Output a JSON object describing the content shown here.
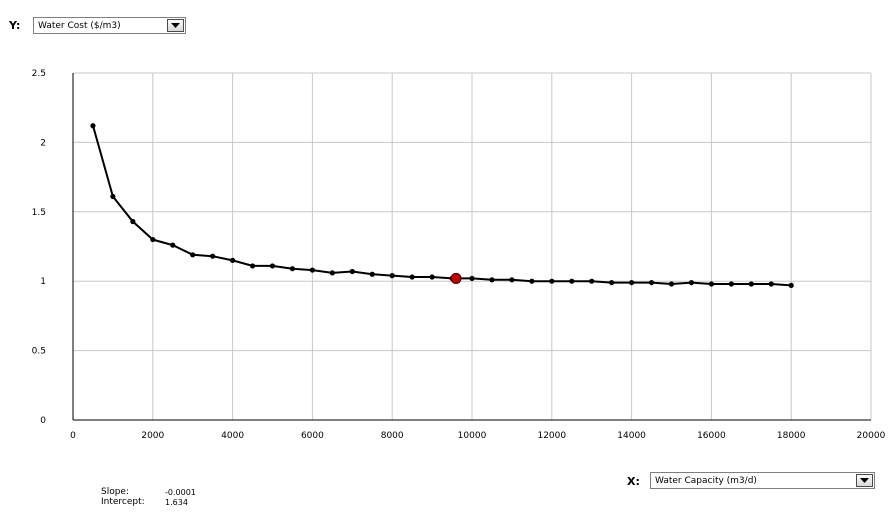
{
  "y_selector": {
    "key_label": "Y:",
    "selected": "Water Cost ($/m3)",
    "icon": "chevron-down-icon"
  },
  "x_selector": {
    "key_label": "X:",
    "selected": "Water Capacity (m3/d)",
    "icon": "chevron-down-icon"
  },
  "stats": {
    "slope_label": "Slope:",
    "slope_value": "-0.0001",
    "intercept_label": "Intercept:",
    "intercept_value": "1.634"
  },
  "colors": {
    "line": "#000000",
    "point": "#000000",
    "highlight_point": "#c00000",
    "grid": "#c8c8c8"
  },
  "chart_data": {
    "type": "line",
    "title": "",
    "xlabel": "",
    "ylabel": "",
    "xlim": [
      0,
      20000
    ],
    "ylim": [
      0,
      2.5
    ],
    "x_ticks": [
      "0",
      "2000",
      "4000",
      "6000",
      "8000",
      "10000",
      "12000",
      "14000",
      "16000",
      "18000",
      "20000"
    ],
    "y_ticks": [
      "0",
      "0.5",
      "1",
      "1.5",
      "2",
      "2.5"
    ],
    "grid": true,
    "series": [
      {
        "x": [
          500,
          1000,
          1500,
          2000,
          2500,
          3000,
          3500,
          4000,
          4500,
          5000,
          5500,
          6000,
          6500,
          7000,
          7500,
          8000,
          8500,
          9000,
          9500,
          10000,
          10500,
          11000,
          11500,
          12000,
          12500,
          13000,
          13500,
          14000,
          14500,
          15000,
          15500,
          16000,
          16500,
          17000,
          17500,
          18000
        ],
        "y": [
          2.12,
          1.61,
          1.43,
          1.3,
          1.26,
          1.19,
          1.18,
          1.15,
          1.11,
          1.11,
          1.09,
          1.08,
          1.06,
          1.07,
          1.05,
          1.04,
          1.03,
          1.03,
          1.02,
          1.02,
          1.01,
          1.01,
          1.0,
          1.0,
          1.0,
          1.0,
          0.99,
          0.99,
          0.99,
          0.98,
          0.99,
          0.98,
          0.98,
          0.98,
          0.98,
          0.97
        ]
      }
    ],
    "highlight": {
      "x": 9600,
      "y": 1.02
    }
  }
}
